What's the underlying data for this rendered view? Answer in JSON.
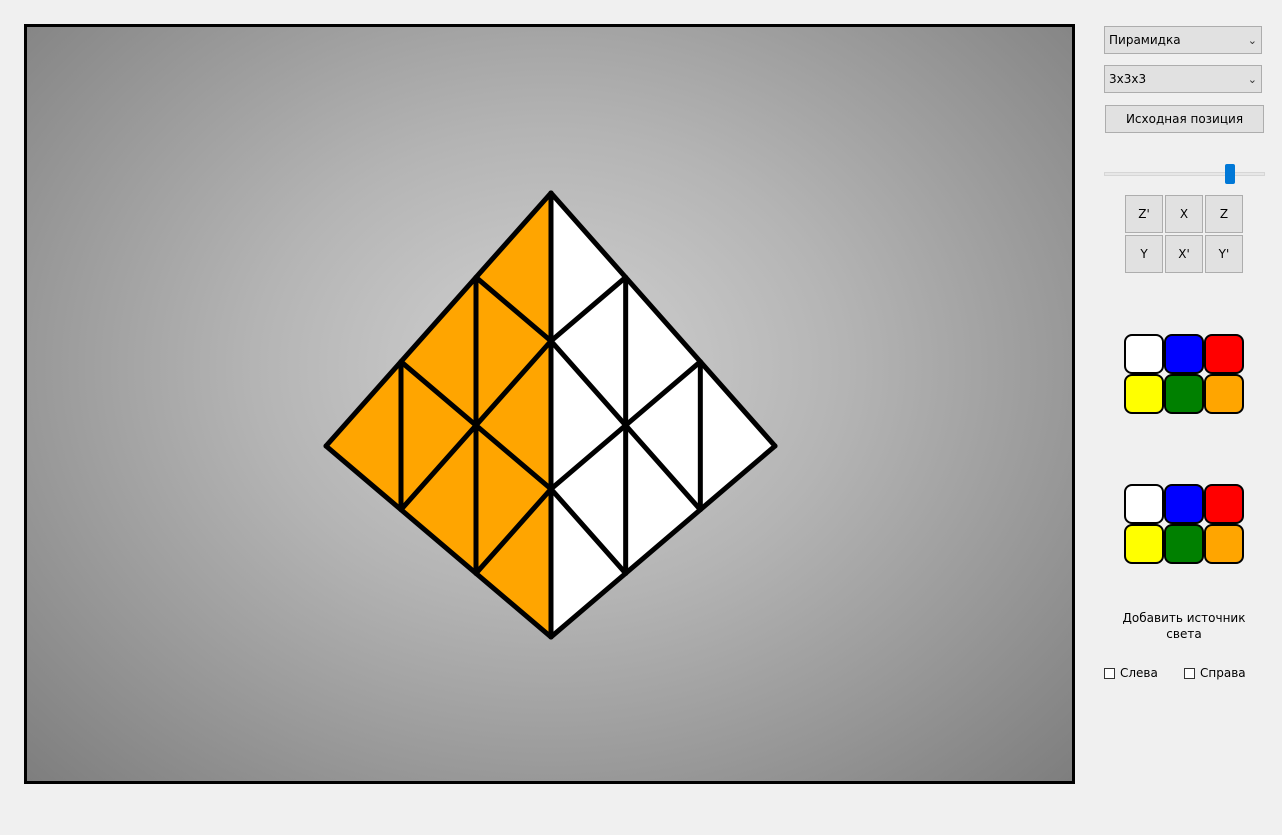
{
  "controls": {
    "puzzle_select": {
      "value": "Пирамидка"
    },
    "size_select": {
      "value": "3х3х3"
    },
    "reset_button": {
      "label": "Исходная позиция"
    },
    "speed_slider": {
      "value_fraction": 0.8
    },
    "rotation_buttons": [
      {
        "label": "Z'"
      },
      {
        "label": "X"
      },
      {
        "label": "Z"
      },
      {
        "label": "Y"
      },
      {
        "label": "X'"
      },
      {
        "label": "Y'"
      }
    ],
    "palette_1": [
      "#ffffff",
      "#0000ff",
      "#ff0000",
      "#ffff00",
      "#008000",
      "#ffa500"
    ],
    "palette_2": [
      "#ffffff",
      "#0000ff",
      "#ff0000",
      "#ffff00",
      "#008000",
      "#ffa500"
    ],
    "light_label": "Добавить источник света",
    "checkbox_left": {
      "label": "Слева",
      "checked": false
    },
    "checkbox_right": {
      "label": "Справа",
      "checked": false
    }
  },
  "puzzle_view": {
    "left_face_color": "#ffa500",
    "right_face_color": "#ffffff"
  }
}
